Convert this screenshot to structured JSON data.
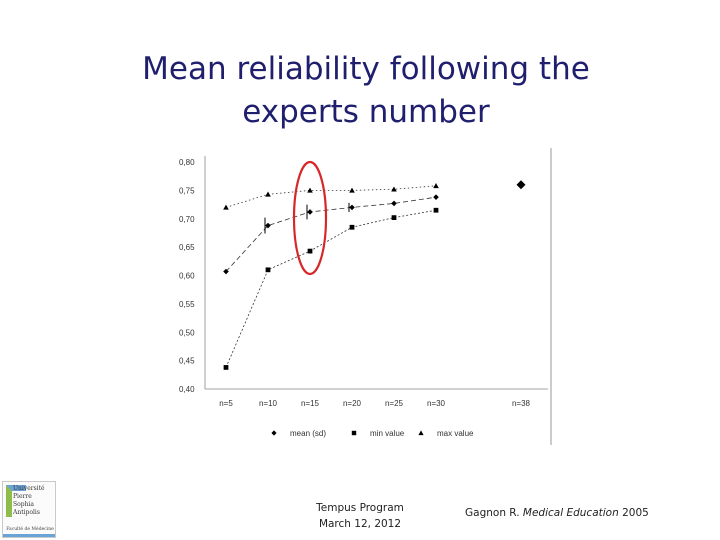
{
  "slide": {
    "title_lines": [
      "Mean reliability following the",
      "experts number"
    ],
    "footer": {
      "center_lines": [
        "Tempus Program",
        "March 12, 2012"
      ],
      "citation_author": "Gagnon R. ",
      "citation_journal": "Medical Education",
      "citation_year": " 2005"
    },
    "logo": {
      "lines": [
        "Université",
        "Pierre",
        "Sophia Antipolis"
      ],
      "bottom_text": "Faculté de Médecine"
    },
    "highlight_color": "#d62828"
  },
  "chart_data": {
    "type": "scatter",
    "categories": [
      "n=5",
      "n=10",
      "n=15",
      "n=20",
      "n=25",
      "n=30",
      "n=38"
    ],
    "y_ticks": [
      "0,80",
      "0,75",
      "0,70",
      "0,65",
      "0,60",
      "0,55",
      "0,50",
      "0,45",
      "0,40"
    ],
    "ylim": [
      0.4,
      0.8
    ],
    "series": [
      {
        "name": "mean (sd)",
        "marker": "diamond",
        "values": [
          0.607,
          0.688,
          0.712,
          0.72,
          0.727,
          0.738,
          0.76
        ],
        "error": [
          null,
          0.014,
          0.013,
          0.008,
          null,
          null,
          null
        ]
      },
      {
        "name": "min value",
        "marker": "square",
        "values": [
          0.438,
          0.61,
          0.643,
          0.685,
          0.702,
          0.715,
          null
        ]
      },
      {
        "name": "max value",
        "marker": "triangle",
        "values": [
          0.72,
          0.743,
          0.75,
          0.75,
          0.752,
          0.758,
          null
        ]
      }
    ],
    "highlight_category": "n=15",
    "grid": false,
    "legend_position": "bottom"
  }
}
